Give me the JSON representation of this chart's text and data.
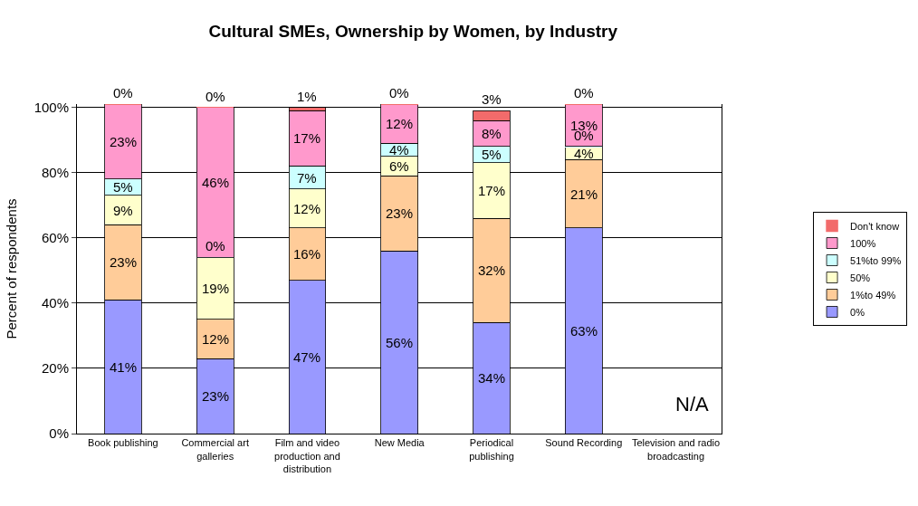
{
  "chart_data": {
    "type": "bar",
    "stacked": true,
    "title": "Cultural SMEs, Ownership by Women, by Industry",
    "ylabel": "Percent of respondents",
    "categories": [
      "Book publishing",
      "Commercial art galleries",
      "Film and video production and distribution",
      "New Media",
      "Periodical publishing",
      "Sound Recording",
      "Television and radio broadcasting"
    ],
    "series": [
      {
        "name": "0%",
        "color": "#9999ff",
        "values": [
          41,
          23,
          47,
          56,
          34,
          63,
          null
        ],
        "value_labels": [
          "41%",
          "23%",
          "47%",
          "56%",
          "34%",
          "63%",
          null
        ]
      },
      {
        "name": "1%to 49%",
        "color": "#ffcc99",
        "values": [
          23,
          12,
          16,
          23,
          32,
          21,
          null
        ],
        "value_labels": [
          "23%",
          "12%",
          "16%",
          "23%",
          "32%",
          "21%",
          null
        ]
      },
      {
        "name": "50%",
        "color": "#ffffcc",
        "values": [
          9,
          19,
          12,
          6,
          17,
          4,
          null
        ],
        "value_labels": [
          "9%",
          "19%",
          "12%",
          "6%",
          "17%",
          "4%",
          null
        ]
      },
      {
        "name": "51%to 99%",
        "color": "#ccffff",
        "values": [
          5,
          0,
          7,
          4,
          5,
          0,
          null
        ],
        "value_labels": [
          "5%",
          "0%",
          "7%",
          "4%",
          "5%",
          "0%",
          null
        ]
      },
      {
        "name": "100%",
        "color": "#ff99cc",
        "values": [
          23,
          46,
          17,
          12,
          8,
          13,
          null
        ],
        "value_labels": [
          "23%",
          "46%",
          "17%",
          "12%",
          "8%",
          "13%",
          null
        ]
      },
      {
        "name": "Don't know",
        "color": "#f26b6b",
        "values": [
          0,
          0,
          1,
          0,
          3,
          0,
          null
        ],
        "value_labels": [
          "0%",
          "0%",
          "1%",
          "0%",
          "3%",
          "0%",
          null
        ]
      }
    ],
    "ylim": [
      0,
      101
    ],
    "yticks": [
      {
        "value": 0,
        "label": "0%"
      },
      {
        "value": 20,
        "label": "20%"
      },
      {
        "value": 40,
        "label": "40%"
      },
      {
        "value": 60,
        "label": "60%"
      },
      {
        "value": 80,
        "label": "80%"
      },
      {
        "value": 100,
        "label": "100%"
      }
    ],
    "grid": "y",
    "legend": "right",
    "annotations": [
      "N/A"
    ]
  }
}
